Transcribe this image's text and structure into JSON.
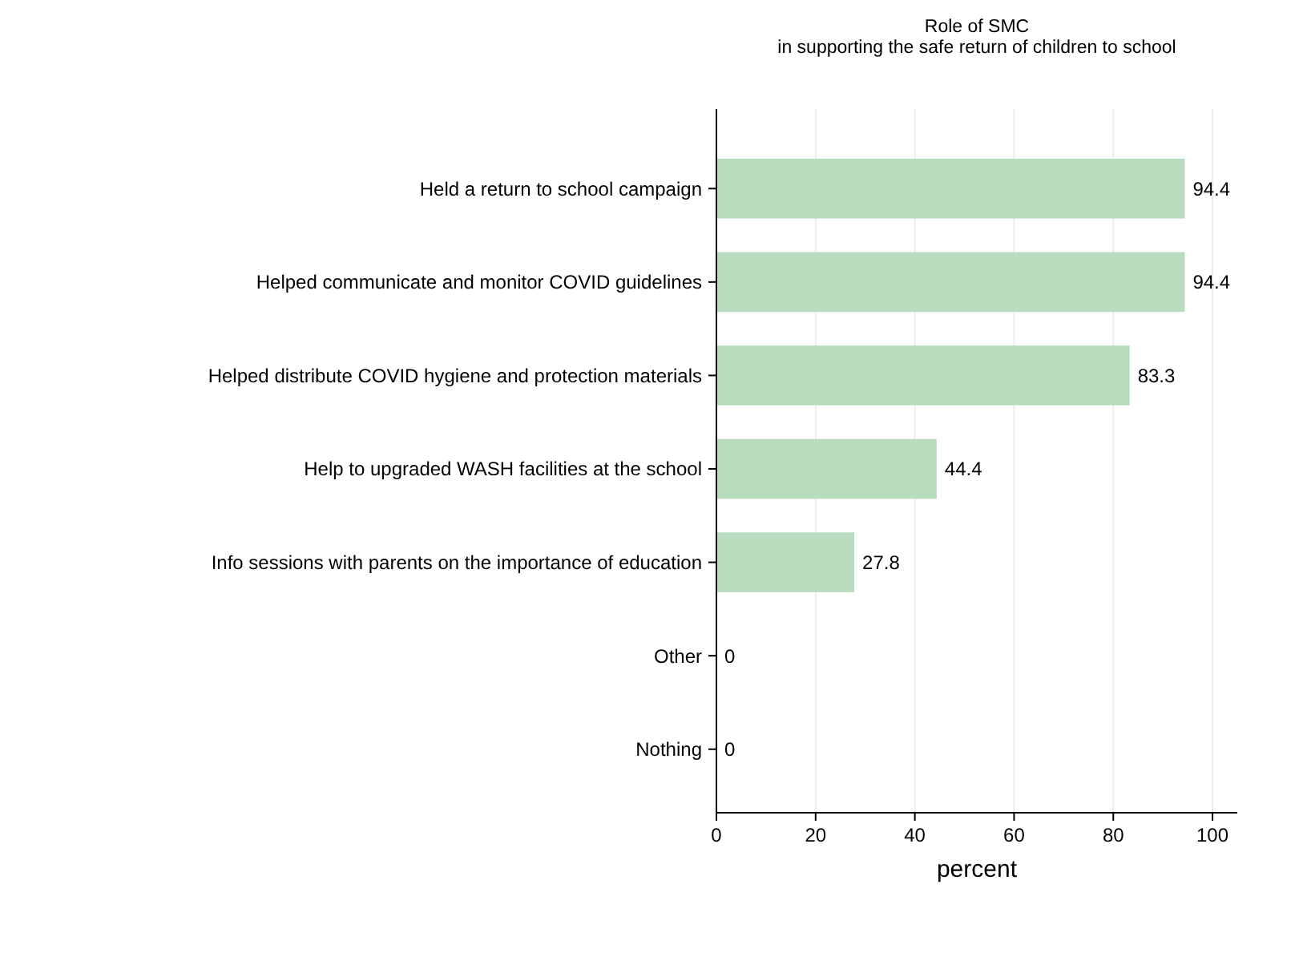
{
  "chart_data": {
    "type": "bar",
    "orientation": "horizontal",
    "title": "Role of SMC",
    "subtitle": "in supporting the safe return of children to school",
    "xlabel": "percent",
    "categories": [
      "Held a return to school campaign",
      "Helped communicate and monitor COVID guidelines",
      "Helped distribute COVID hygiene and protection materials",
      "Help to upgraded WASH facilities at the school",
      "Info sessions with parents on the importance of education",
      "Other",
      "Nothing"
    ],
    "values": [
      94.4,
      94.4,
      83.3,
      44.4,
      27.8,
      0,
      0
    ],
    "color": "#b9dcbf",
    "data_labels": true,
    "xlim": [
      0,
      105
    ],
    "xticks": [
      0,
      20,
      40,
      60,
      80,
      100
    ],
    "grid": "x"
  }
}
